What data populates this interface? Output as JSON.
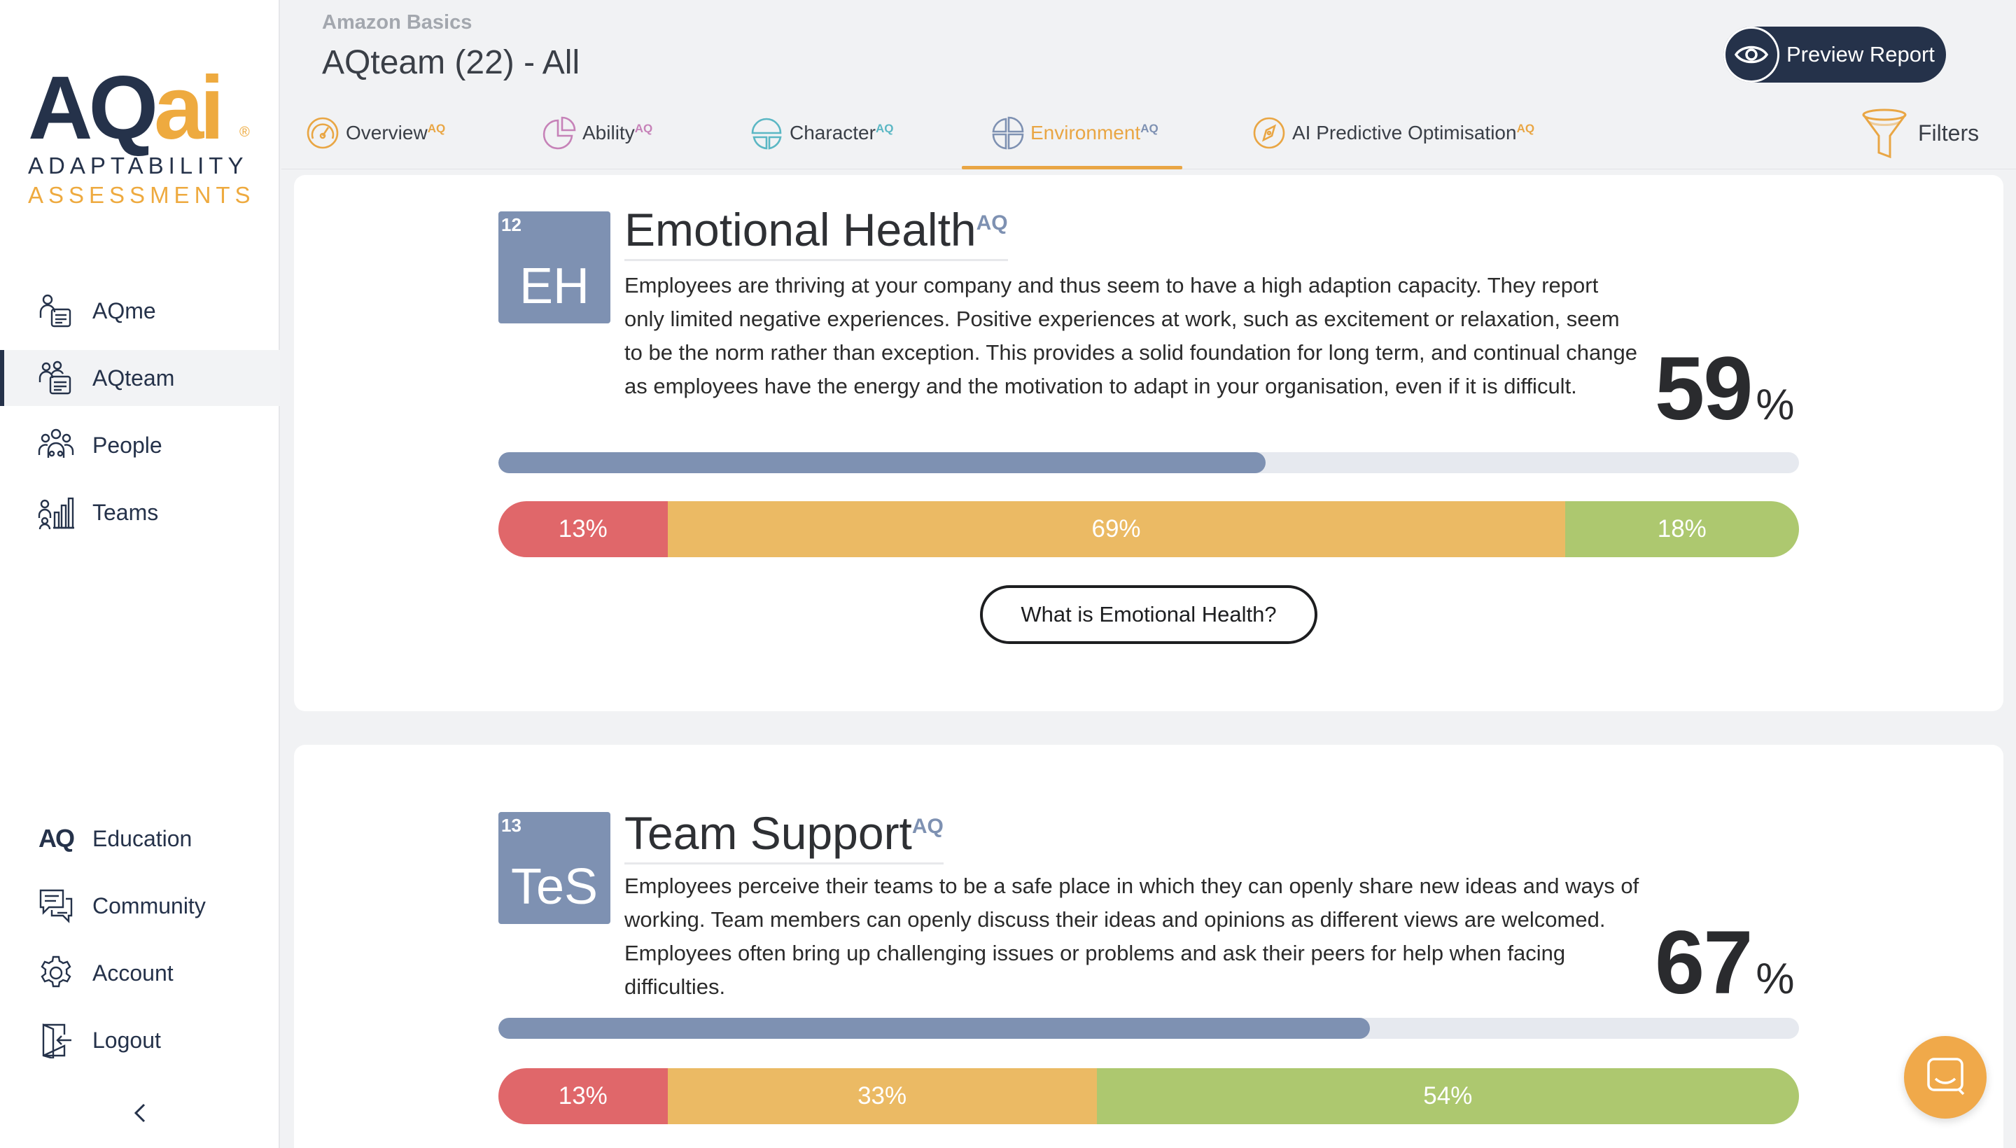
{
  "brand": {
    "logo_main_left": "AQ",
    "logo_main_right": "ai",
    "logo_registered": "®",
    "logo_line1": "ADAPTABILITY",
    "logo_line2": "ASSESSMENTS",
    "primary_color": "#25324a",
    "accent_color": "#eeaa3f"
  },
  "sidebar": {
    "nav_top": [
      {
        "label": "AQme",
        "icon": "person-card-icon",
        "active": false
      },
      {
        "label": "AQteam",
        "icon": "team-card-icon",
        "active": true
      },
      {
        "label": "People",
        "icon": "people-group-icon",
        "active": false
      },
      {
        "label": "Teams",
        "icon": "teams-chart-icon",
        "active": false
      }
    ],
    "nav_bottom": [
      {
        "label": "Education",
        "icon": "aq-logo-icon",
        "icon_text": "AQ"
      },
      {
        "label": "Community",
        "icon": "chat-bubbles-icon"
      },
      {
        "label": "Account",
        "icon": "gear-icon"
      },
      {
        "label": "Logout",
        "icon": "logout-door-icon"
      }
    ],
    "collapse_icon": "chevron-left-icon"
  },
  "header": {
    "company": "Amazon Basics",
    "title": "AQteam (22) - All",
    "preview_button": "Preview Report",
    "preview_icon": "eye-icon"
  },
  "tabs": [
    {
      "label": "Overview",
      "sup": "AQ",
      "icon": "speedometer-icon",
      "icon_color": "#e9a644",
      "active": false
    },
    {
      "label": "Ability",
      "sup": "AQ",
      "icon": "pie-fragment-icon",
      "icon_color": "#c682b8",
      "active": false
    },
    {
      "label": "Character",
      "sup": "AQ",
      "icon": "pie-split-icon",
      "icon_color": "#5bb7c4",
      "active": false
    },
    {
      "label": "Environment",
      "sup": "AQ",
      "icon": "pie-quarters-icon",
      "icon_color": "#7e91b2",
      "active": true
    },
    {
      "label": "AI Predictive Optimisation",
      "sup": "AQ",
      "icon": "compass-icon",
      "icon_color": "#e9a644",
      "active": false
    }
  ],
  "filters": {
    "label": "Filters",
    "icon": "funnel-icon"
  },
  "sections": [
    {
      "number": "12",
      "abbr": "EH",
      "title": "Emotional Health",
      "title_sup": "AQ",
      "description": "Employees are thriving at your company and thus seem to have a high adaption capacity. They report only limited negative experiences. Positive experiences at work, such as excitement or relaxation, seem to be the norm rather than exception. This provides a solid foundation for long term, and continual change as employees have the energy and the motivation to adapt in your organisation, even if it is difficult.",
      "score": "59",
      "score_unit": "%",
      "progress": 59,
      "distribution": [
        {
          "label": "13%",
          "value": 13,
          "color": "#e0676a"
        },
        {
          "label": "69%",
          "value": 69,
          "color": "#ebba64"
        },
        {
          "label": "18%",
          "value": 18,
          "color": "#adc86f"
        }
      ],
      "button": "What is Emotional Health?"
    },
    {
      "number": "13",
      "abbr": "TeS",
      "title": "Team Support",
      "title_sup": "AQ",
      "description": "Employees perceive their teams to be a safe place in which they can openly share new ideas and ways of working. Team members can openly discuss their ideas and opinions as different views are welcomed. Employees often bring up challenging issues or problems and ask their peers for help when facing difficulties.",
      "score": "67",
      "score_unit": "%",
      "progress": 67,
      "distribution": [
        {
          "label": "13%",
          "value": 13,
          "color": "#e0676a"
        },
        {
          "label": "33%",
          "value": 33,
          "color": "#ebba64"
        },
        {
          "label": "54%",
          "value": 54,
          "color": "#adc86f"
        }
      ]
    }
  ],
  "chat_widget": {
    "icon": "chat-launcher-icon"
  }
}
